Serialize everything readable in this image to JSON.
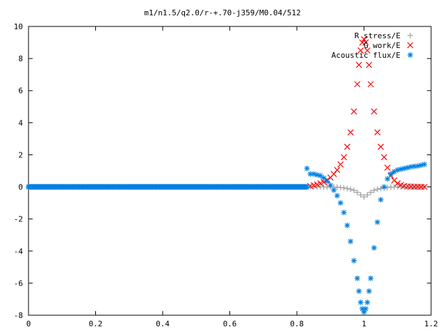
{
  "chart_data": {
    "type": "scatter",
    "title": "m1/n1.5/q2.0/r-+.70-j359/M0.04/512",
    "xlabel": "",
    "ylabel": "",
    "xlim": [
      0,
      1.2
    ],
    "ylim": [
      -8,
      10
    ],
    "grid": false,
    "legend_position": "top-right",
    "x_ticks": [
      0,
      0.2,
      0.4,
      0.6,
      0.8,
      1,
      1.2
    ],
    "x_tick_labels": [
      "0",
      "0.2",
      "0.4",
      "0.6",
      "0.8",
      "1",
      "1.2"
    ],
    "y_ticks": [
      -8,
      -6,
      -4,
      -2,
      0,
      2,
      4,
      6,
      8,
      10
    ],
    "y_tick_labels": [
      "-8",
      "-6",
      "-4",
      "-2",
      "0",
      "2",
      "4",
      "6",
      "8",
      "10"
    ],
    "series": [
      {
        "name": "R stress/E",
        "marker": "+",
        "color": "#a0a0a0",
        "x": [
          0.84,
          0.85,
          0.86,
          0.87,
          0.88,
          0.89,
          0.9,
          0.91,
          0.92,
          0.93,
          0.94,
          0.95,
          0.96,
          0.97,
          0.98,
          0.99,
          1.0,
          1.01,
          1.02,
          1.03,
          1.04,
          1.05,
          1.06,
          1.07,
          1.08,
          1.09,
          1.1,
          1.11,
          1.12,
          1.13,
          1.14,
          1.15,
          1.16,
          1.17,
          1.18
        ],
        "y": [
          0.0,
          0.0,
          0.0,
          0.0,
          0.0,
          0.0,
          0.0,
          -0.01,
          -0.02,
          -0.04,
          -0.06,
          -0.1,
          -0.15,
          -0.22,
          -0.34,
          -0.5,
          -0.62,
          -0.5,
          -0.34,
          -0.22,
          -0.15,
          -0.1,
          -0.06,
          -0.04,
          -0.02,
          -0.01,
          0.0,
          0.0,
          0.0,
          0.0,
          0.0,
          0.0,
          0.0,
          0.0,
          0.0
        ]
      },
      {
        "name": "G work/E",
        "marker": "x",
        "color": "#ff0000",
        "x": [
          0.84,
          0.85,
          0.86,
          0.87,
          0.88,
          0.89,
          0.9,
          0.91,
          0.92,
          0.93,
          0.94,
          0.95,
          0.96,
          0.97,
          0.98,
          0.985,
          0.99,
          0.995,
          1.0,
          1.005,
          1.01,
          1.015,
          1.02,
          1.03,
          1.04,
          1.05,
          1.06,
          1.07,
          1.08,
          1.09,
          1.1,
          1.11,
          1.12,
          1.13,
          1.14,
          1.15,
          1.16,
          1.17,
          1.18
        ],
        "y": [
          0.05,
          0.1,
          0.15,
          0.22,
          0.3,
          0.42,
          0.58,
          0.8,
          1.05,
          1.4,
          1.85,
          2.5,
          3.4,
          4.7,
          6.4,
          7.6,
          8.5,
          9.0,
          9.2,
          9.0,
          8.5,
          7.6,
          6.4,
          4.7,
          3.4,
          2.5,
          1.85,
          1.2,
          0.7,
          0.4,
          0.22,
          0.12,
          0.06,
          0.03,
          0.02,
          0.01,
          0.01,
          0.0,
          0.0
        ]
      },
      {
        "name": "Acoustic flux/E",
        "marker": "*",
        "color": "#0080e0",
        "x": [
          0.0,
          0.01,
          0.02,
          0.03,
          0.04,
          0.05,
          0.06,
          0.07,
          0.08,
          0.09,
          0.1,
          0.11,
          0.12,
          0.13,
          0.14,
          0.15,
          0.16,
          0.17,
          0.18,
          0.19,
          0.2,
          0.21,
          0.22,
          0.23,
          0.24,
          0.25,
          0.26,
          0.27,
          0.28,
          0.29,
          0.3,
          0.31,
          0.32,
          0.33,
          0.34,
          0.35,
          0.36,
          0.37,
          0.38,
          0.39,
          0.4,
          0.41,
          0.42,
          0.43,
          0.44,
          0.45,
          0.46,
          0.47,
          0.48,
          0.49,
          0.5,
          0.51,
          0.52,
          0.53,
          0.54,
          0.55,
          0.56,
          0.57,
          0.58,
          0.59,
          0.6,
          0.61,
          0.62,
          0.63,
          0.64,
          0.65,
          0.66,
          0.67,
          0.68,
          0.69,
          0.7,
          0.71,
          0.72,
          0.73,
          0.74,
          0.75,
          0.76,
          0.77,
          0.78,
          0.79,
          0.8,
          0.81,
          0.82,
          0.83,
          0.84,
          0.85,
          0.86,
          0.87,
          0.88,
          0.89,
          0.9,
          0.91,
          0.92,
          0.93,
          0.94,
          0.95,
          0.96,
          0.97,
          0.98,
          0.985,
          0.99,
          0.995,
          1.0,
          1.005,
          1.01,
          1.015,
          1.02,
          1.03,
          1.04,
          1.05,
          1.06,
          1.07,
          1.08,
          1.09,
          1.1,
          1.11,
          1.12,
          1.13,
          1.14,
          1.15,
          1.16,
          1.17,
          1.18
        ],
        "y": [
          0,
          0,
          0,
          0,
          0,
          0,
          0,
          0,
          0,
          0,
          0,
          0,
          0,
          0,
          0,
          0,
          0,
          0,
          0,
          0,
          0,
          0,
          0,
          0,
          0,
          0,
          0,
          0,
          0,
          0,
          0,
          0,
          0,
          0,
          0,
          0,
          0,
          0,
          0,
          0,
          0,
          0,
          0,
          0,
          0,
          0,
          0,
          0,
          0,
          0,
          0,
          0,
          0,
          0,
          0,
          0,
          0,
          0,
          0,
          0,
          0,
          0,
          0,
          0,
          0,
          0,
          0,
          0,
          0,
          0,
          0,
          0,
          0,
          0,
          0,
          0,
          0,
          0,
          0,
          0,
          0,
          0,
          0,
          1.15,
          0.8,
          0.8,
          0.75,
          0.7,
          0.55,
          0.35,
          0.1,
          -0.2,
          -0.55,
          -1.0,
          -1.6,
          -2.4,
          -3.4,
          -4.6,
          -5.7,
          -6.5,
          -7.2,
          -7.6,
          -7.8,
          -7.6,
          -7.2,
          -6.5,
          -5.7,
          -3.8,
          -2.2,
          -0.8,
          0.0,
          0.5,
          0.8,
          0.95,
          1.05,
          1.1,
          1.15,
          1.2,
          1.25,
          1.28,
          1.3,
          1.35,
          1.4
        ]
      }
    ]
  }
}
